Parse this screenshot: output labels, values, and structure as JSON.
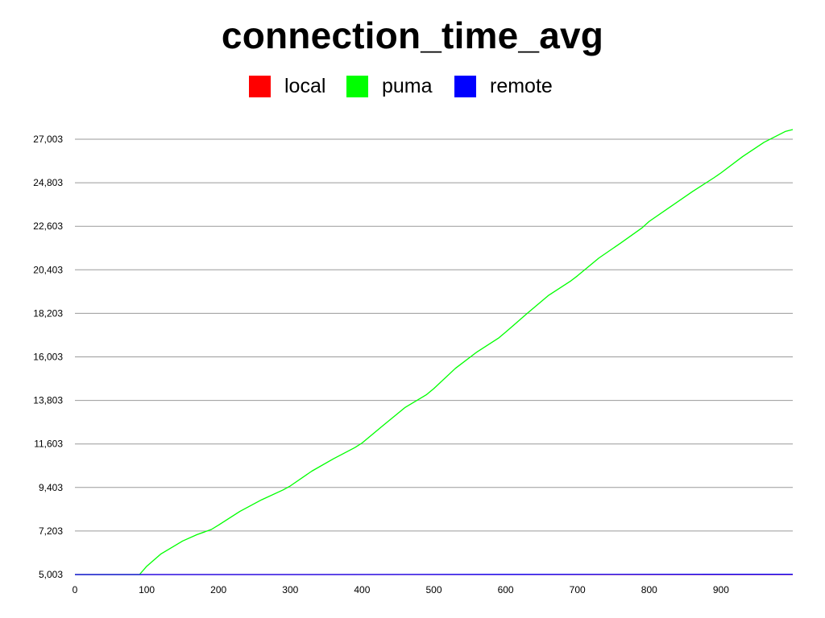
{
  "chart_data": {
    "type": "line",
    "title": "connection_time_avg",
    "xlabel": "",
    "ylabel": "",
    "xlim": [
      0,
      1000
    ],
    "ylim": [
      5003,
      27003
    ],
    "x_ticks": [
      0,
      100,
      200,
      300,
      400,
      500,
      600,
      700,
      800,
      900
    ],
    "x_tick_labels": [
      "0",
      "100",
      "200",
      "300",
      "400",
      "500",
      "600",
      "700",
      "800",
      "900"
    ],
    "y_ticks": [
      5003,
      7203,
      9403,
      11603,
      13803,
      16003,
      18203,
      20403,
      22603,
      24803,
      27003
    ],
    "y_tick_labels": [
      "5,003",
      "7,203",
      "9,403",
      "11,603",
      "13,803",
      "16,003",
      "18,203",
      "20,403",
      "22,603",
      "24,803",
      "27,003"
    ],
    "grid": true,
    "legend_position": "top",
    "series": [
      {
        "name": "local",
        "color": "#ff0000",
        "x": [
          0,
          1000
        ],
        "y": [
          5003,
          5003
        ]
      },
      {
        "name": "puma",
        "color": "#00ff00",
        "x": [
          0,
          90,
          100,
          120,
          150,
          170,
          190,
          200,
          230,
          260,
          290,
          300,
          330,
          360,
          390,
          400,
          430,
          460,
          490,
          500,
          530,
          560,
          590,
          600,
          630,
          660,
          690,
          700,
          730,
          760,
          790,
          800,
          830,
          860,
          890,
          900,
          930,
          960,
          990,
          1000
        ],
        "y": [
          5003,
          5003,
          5420,
          6050,
          6700,
          7020,
          7280,
          7500,
          8200,
          8780,
          9280,
          9480,
          10230,
          10850,
          11420,
          11650,
          12560,
          13450,
          14100,
          14400,
          15420,
          16250,
          16950,
          17250,
          18200,
          19120,
          19820,
          20100,
          21000,
          21750,
          22520,
          22850,
          23600,
          24350,
          25050,
          25300,
          26120,
          26850,
          27400,
          27600
        ]
      },
      {
        "name": "remote",
        "color": "#0000ff",
        "x": [
          0,
          300,
          600,
          900,
          1000
        ],
        "y": [
          5003,
          5003,
          5010,
          5015,
          5015
        ]
      }
    ]
  }
}
